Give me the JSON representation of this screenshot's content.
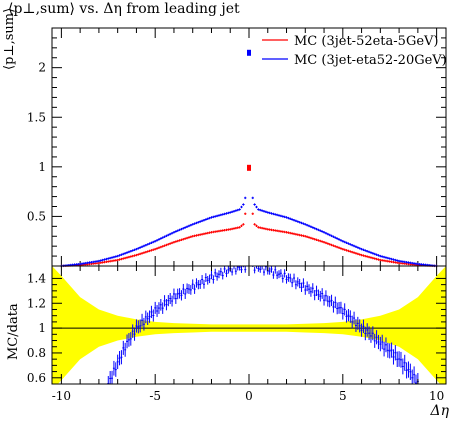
{
  "title": "⟨p⊥,sum⟩ vs. Δη from leading jet",
  "chart_data": [
    {
      "type": "scatter",
      "panel": "main",
      "title": "⟨p⊥,sum⟩ vs. Δη from leading jet",
      "ylabel": "⟨p⊥,sum⟩",
      "xlim": [
        -10.5,
        10.5
      ],
      "ylim": [
        0,
        2.4
      ],
      "xticks": [
        -10,
        -5,
        0,
        5,
        10
      ],
      "yticks": [
        0.5,
        1,
        1.5,
        2
      ],
      "legend_position": "top-right",
      "series": [
        {
          "name": "MC (3jet-52eta-5GeV)",
          "color": "#ff0000",
          "x": [
            -10,
            -9,
            -8,
            -7,
            -6,
            -5,
            -4,
            -3,
            -2,
            -1,
            -0.5,
            -0.3,
            -0.15,
            0,
            0.15,
            0.3,
            0.5,
            1,
            2,
            3,
            4,
            5,
            6,
            7,
            8,
            9,
            10
          ],
          "y": [
            0.0,
            0.01,
            0.03,
            0.06,
            0.11,
            0.17,
            0.24,
            0.3,
            0.34,
            0.37,
            0.39,
            0.42,
            0.58,
            0.99,
            0.58,
            0.42,
            0.39,
            0.37,
            0.34,
            0.3,
            0.24,
            0.17,
            0.11,
            0.06,
            0.03,
            0.01,
            0.0
          ]
        },
        {
          "name": "MC (3jet-eta52-20GeV)",
          "color": "#0000ff",
          "x": [
            -10,
            -9,
            -8,
            -7,
            -6,
            -5,
            -4,
            -3,
            -2,
            -1,
            -0.5,
            -0.3,
            -0.15,
            0,
            0.15,
            0.3,
            0.5,
            1,
            2,
            3,
            4,
            5,
            6,
            7,
            8,
            9,
            10
          ],
          "y": [
            0.0,
            0.02,
            0.05,
            0.1,
            0.17,
            0.25,
            0.34,
            0.42,
            0.49,
            0.54,
            0.57,
            0.62,
            0.72,
            2.15,
            0.72,
            0.62,
            0.57,
            0.54,
            0.49,
            0.42,
            0.34,
            0.25,
            0.17,
            0.1,
            0.05,
            0.02,
            0.0
          ]
        }
      ]
    },
    {
      "type": "scatter",
      "panel": "ratio",
      "ylabel": "MC/data",
      "xlabel": "Δη",
      "xlim": [
        -10.5,
        10.5
      ],
      "ylim": [
        0.55,
        1.5
      ],
      "xticks": [
        -10,
        -5,
        0,
        5,
        10
      ],
      "yticks": [
        0.6,
        0.8,
        1,
        1.2,
        1.4
      ],
      "reference_line": 1,
      "band": {
        "color": "#ffff00",
        "x": [
          -10.5,
          -10,
          -9,
          -8,
          -7,
          -6,
          -5,
          -4,
          -3,
          -2,
          -1,
          0,
          1,
          2,
          3,
          4,
          5,
          6,
          7,
          8,
          9,
          10,
          10.5
        ],
        "half_width": [
          0.5,
          0.42,
          0.25,
          0.15,
          0.1,
          0.07,
          0.05,
          0.04,
          0.035,
          0.03,
          0.03,
          0.03,
          0.03,
          0.03,
          0.035,
          0.04,
          0.05,
          0.07,
          0.1,
          0.15,
          0.25,
          0.42,
          0.5
        ]
      },
      "series": [
        {
          "name": "MC (3jet-eta52-20GeV)",
          "color": "#0000ff",
          "x": [
            -7.5,
            -7,
            -6.5,
            -6,
            -5,
            -4,
            -3,
            -2,
            -1,
            0,
            1,
            2,
            3,
            4,
            5,
            6,
            6.5,
            7,
            7.5,
            8,
            8.5,
            9
          ],
          "y": [
            0.55,
            0.72,
            0.88,
            1.0,
            1.14,
            1.25,
            1.33,
            1.41,
            1.47,
            1.5,
            1.47,
            1.41,
            1.33,
            1.25,
            1.14,
            1.0,
            0.95,
            0.88,
            0.82,
            0.75,
            0.66,
            0.56
          ]
        }
      ]
    }
  ]
}
